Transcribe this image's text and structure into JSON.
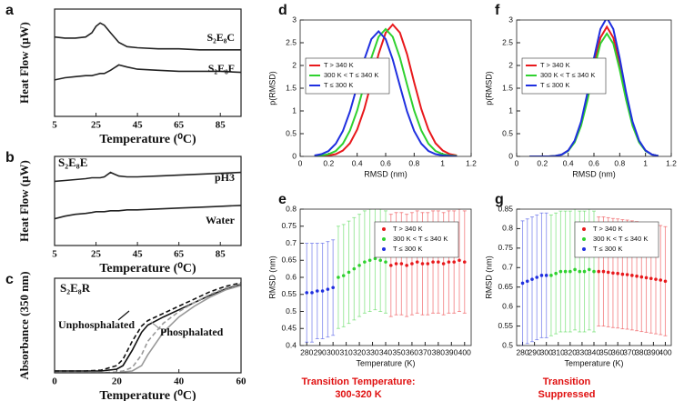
{
  "chart_data": [
    {
      "type": "line",
      "label": "a",
      "xlabel": "Temperature (⁰C)",
      "ylabel": "Heat Flow (μW)",
      "xlim": [
        5,
        95
      ],
      "xticks": [
        5,
        25,
        45,
        65,
        85
      ],
      "ylim": [
        0,
        10
      ],
      "x": [
        5,
        10,
        15,
        20,
        23,
        25,
        27,
        29,
        32,
        36,
        40,
        45,
        55,
        65,
        75,
        85,
        95
      ],
      "series": [
        {
          "name": "S₂E₈C",
          "color": "#222222",
          "style": "solid",
          "values": [
            7.4,
            7.3,
            7.3,
            7.4,
            7.8,
            8.4,
            8.7,
            8.5,
            7.8,
            6.9,
            6.5,
            6.4,
            6.3,
            6.3,
            6.2,
            6.2,
            6.2
          ]
        },
        {
          "name": "S₂E₈F",
          "color": "#222222",
          "style": "solid",
          "values": [
            3.4,
            3.6,
            3.7,
            3.8,
            3.8,
            3.9,
            4.0,
            4.0,
            4.3,
            4.8,
            4.6,
            4.4,
            4.3,
            4.2,
            4.2,
            4.2,
            4.1
          ]
        }
      ]
    },
    {
      "type": "line",
      "label": "b",
      "xlabel": "Temperature (⁰C)",
      "ylabel": "Heat Flow (μW)",
      "annotation": "S₂E₈E",
      "xlim": [
        5,
        95
      ],
      "xticks": [
        5,
        25,
        45,
        65,
        85
      ],
      "ylim": [
        0,
        10
      ],
      "x": [
        5,
        10,
        15,
        20,
        23,
        25,
        27,
        29,
        32,
        36,
        40,
        45,
        55,
        65,
        75,
        85,
        95
      ],
      "series": [
        {
          "name": "pH3",
          "color": "#222222",
          "style": "solid",
          "values": [
            7.2,
            7.3,
            7.4,
            7.5,
            7.6,
            7.6,
            7.6,
            7.7,
            8.2,
            7.8,
            7.7,
            7.7,
            7.8,
            7.9,
            8.0,
            8.1,
            8.2
          ]
        },
        {
          "name": "Water",
          "color": "#222222",
          "style": "solid",
          "values": [
            3.0,
            3.3,
            3.5,
            3.6,
            3.7,
            3.8,
            3.8,
            3.8,
            3.9,
            3.9,
            4.0,
            4.0,
            4.1,
            4.2,
            4.3,
            4.4,
            4.5
          ]
        }
      ]
    },
    {
      "type": "line",
      "label": "c",
      "xlabel": "Temperature (⁰C)",
      "ylabel": "Absorbance (350 nm)",
      "annotation": "S₂E₈R",
      "xlim": [
        0,
        60
      ],
      "xticks": [
        0,
        20,
        40,
        60
      ],
      "ylim": [
        0,
        1.05
      ],
      "x": [
        0,
        10,
        15,
        20,
        22,
        25,
        28,
        30,
        35,
        40,
        45,
        50,
        55,
        60
      ],
      "series": [
        {
          "name": "Unphosphalated",
          "color": "#111111",
          "style": "dashed",
          "values": [
            0.02,
            0.02,
            0.03,
            0.08,
            0.15,
            0.35,
            0.52,
            0.58,
            0.66,
            0.74,
            0.82,
            0.9,
            0.96,
            1.0
          ]
        },
        {
          "color": "#111111",
          "style": "solid",
          "values": [
            0.02,
            0.02,
            0.02,
            0.04,
            0.08,
            0.25,
            0.45,
            0.53,
            0.62,
            0.7,
            0.78,
            0.86,
            0.93,
            0.98
          ]
        },
        {
          "name": "Phosphalated",
          "color": "#999999",
          "style": "dashed",
          "values": [
            0,
            0,
            0,
            0.01,
            0.02,
            0.06,
            0.2,
            0.35,
            0.55,
            0.68,
            0.78,
            0.87,
            0.94,
            0.99
          ]
        },
        {
          "color": "#999999",
          "style": "solid",
          "values": [
            0,
            0,
            0,
            0,
            0.01,
            0.02,
            0.08,
            0.2,
            0.45,
            0.62,
            0.74,
            0.84,
            0.92,
            0.97
          ]
        }
      ]
    },
    {
      "type": "line",
      "label": "d",
      "xlabel": "RMSD (nm)",
      "ylabel": "p(RMSD)",
      "legend": "upper left",
      "xlim": [
        0,
        1.2
      ],
      "xticks": [
        0,
        0.2,
        0.4,
        0.6,
        0.8,
        1,
        1.2
      ],
      "ylim": [
        0,
        3
      ],
      "yticks": [
        0,
        0.5,
        1,
        1.5,
        2,
        2.5,
        3
      ],
      "x": [
        0.1,
        0.15,
        0.2,
        0.25,
        0.3,
        0.35,
        0.4,
        0.45,
        0.5,
        0.55,
        0.6,
        0.65,
        0.7,
        0.75,
        0.8,
        0.85,
        0.9,
        0.95,
        1.0,
        1.05,
        1.1
      ],
      "series": [
        {
          "name": "T > 340 K",
          "color": "#e8191c",
          "style": "solid",
          "values": [
            0,
            0,
            0.02,
            0.05,
            0.13,
            0.29,
            0.59,
            1.04,
            1.63,
            2.25,
            2.72,
            2.9,
            2.72,
            2.25,
            1.63,
            1.04,
            0.59,
            0.29,
            0.13,
            0.05,
            0.02
          ]
        },
        {
          "name": "300 K < T ≤ 340 K",
          "color": "#2fd12f",
          "style": "solid",
          "values": [
            0.01,
            0.02,
            0.05,
            0.12,
            0.28,
            0.57,
            1.01,
            1.58,
            2.17,
            2.63,
            2.8,
            2.63,
            2.17,
            1.58,
            1.01,
            0.57,
            0.28,
            0.12,
            0.05,
            0.02,
            0.01
          ]
        },
        {
          "name": "T ≤ 300 K",
          "color": "#1f2fe0",
          "style": "solid",
          "values": [
            0.02,
            0.05,
            0.12,
            0.28,
            0.56,
            0.99,
            1.55,
            2.13,
            2.58,
            2.75,
            2.58,
            2.13,
            1.55,
            0.99,
            0.56,
            0.28,
            0.12,
            0.05,
            0.02,
            0.01,
            0
          ]
        }
      ]
    },
    {
      "type": "scatter",
      "label": "e",
      "xlabel": "Temperature (K)",
      "ylabel": "RMSD (nm)",
      "legend": "upper right",
      "annotation": [
        "Transition Temperature:",
        "300-320 K"
      ],
      "annotation_color": "#e01010",
      "xlim": [
        275,
        405
      ],
      "xticks": [
        280,
        290,
        300,
        310,
        320,
        330,
        340,
        350,
        360,
        370,
        380,
        390,
        400
      ],
      "ylim": [
        0.4,
        0.8
      ],
      "yticks": [
        0.4,
        0.45,
        0.5,
        0.55,
        0.6,
        0.65,
        0.7,
        0.75,
        0.8
      ],
      "series": [
        {
          "name": "T > 340 K",
          "color": "#e8191c",
          "x": [
            344,
            348,
            352,
            356,
            360,
            364,
            368,
            372,
            376,
            380,
            384,
            388,
            392,
            396,
            400
          ],
          "values": [
            0.635,
            0.64,
            0.64,
            0.635,
            0.64,
            0.645,
            0.64,
            0.64,
            0.645,
            0.645,
            0.64,
            0.645,
            0.645,
            0.65,
            0.645
          ],
          "errors": [
            0.15,
            0.15,
            0.15,
            0.15,
            0.15,
            0.15,
            0.15,
            0.15,
            0.15,
            0.15,
            0.15,
            0.15,
            0.15,
            0.15,
            0.15
          ]
        },
        {
          "name": "300 K < T ≤ 340 K",
          "color": "#2fd12f",
          "x": [
            304,
            308,
            312,
            316,
            320,
            324,
            328,
            332,
            336,
            340
          ],
          "values": [
            0.6,
            0.605,
            0.615,
            0.625,
            0.635,
            0.645,
            0.65,
            0.655,
            0.65,
            0.645
          ],
          "errors": [
            0.15,
            0.15,
            0.15,
            0.15,
            0.15,
            0.15,
            0.15,
            0.15,
            0.15,
            0.15
          ]
        },
        {
          "name": "T ≤ 300 K",
          "color": "#1f2fe0",
          "x": [
            280,
            284,
            288,
            292,
            296,
            300
          ],
          "values": [
            0.555,
            0.555,
            0.56,
            0.56,
            0.565,
            0.57
          ],
          "errors": [
            0.145,
            0.145,
            0.14,
            0.14,
            0.14,
            0.14
          ]
        }
      ]
    },
    {
      "type": "line",
      "label": "f",
      "xlabel": "RMSD (nm)",
      "ylabel": "p(RMSD)",
      "legend": "upper left",
      "xlim": [
        0,
        1.2
      ],
      "xticks": [
        0,
        0.2,
        0.4,
        0.6,
        0.8,
        1,
        1.2
      ],
      "ylim": [
        0,
        3
      ],
      "yticks": [
        0,
        0.5,
        1,
        1.5,
        2,
        2.5,
        3
      ],
      "x": [
        0.1,
        0.15,
        0.2,
        0.25,
        0.3,
        0.35,
        0.4,
        0.45,
        0.5,
        0.55,
        0.6,
        0.65,
        0.7,
        0.75,
        0.8,
        0.85,
        0.9,
        0.95,
        1.0,
        1.05,
        1.1
      ],
      "series": [
        {
          "name": "T > 340 K",
          "color": "#e8191c",
          "style": "solid",
          "values": [
            0,
            0,
            0,
            0,
            0.01,
            0.04,
            0.13,
            0.32,
            0.71,
            1.31,
            2.01,
            2.61,
            2.85,
            2.61,
            2.01,
            1.31,
            0.71,
            0.32,
            0.13,
            0.04,
            0.01
          ]
        },
        {
          "name": "300 K < T ≤ 340 K",
          "color": "#2fd12f",
          "style": "solid",
          "values": [
            0,
            0,
            0,
            0,
            0.01,
            0.04,
            0.12,
            0.31,
            0.67,
            1.24,
            1.91,
            2.48,
            2.7,
            2.48,
            1.91,
            1.24,
            0.67,
            0.31,
            0.12,
            0.04,
            0.01
          ]
        },
        {
          "name": "T ≤ 300 K",
          "color": "#1f2fe0",
          "style": "solid",
          "values": [
            0,
            0,
            0,
            0,
            0.01,
            0.04,
            0.13,
            0.35,
            0.76,
            1.4,
            2.16,
            2.8,
            3.05,
            2.8,
            2.16,
            1.4,
            0.76,
            0.35,
            0.13,
            0.04,
            0.01
          ]
        }
      ]
    },
    {
      "type": "scatter",
      "label": "g",
      "xlabel": "Temperature (K)",
      "ylabel": "RMSD (nm)",
      "legend": "upper right",
      "annotation": [
        "Transition",
        "Suppressed"
      ],
      "annotation_color": "#e01010",
      "xlim": [
        275,
        405
      ],
      "xticks": [
        280,
        290,
        300,
        310,
        320,
        330,
        340,
        350,
        360,
        370,
        380,
        390,
        400
      ],
      "ylim": [
        0.5,
        0.85
      ],
      "yticks": [
        0.5,
        0.55,
        0.6,
        0.65,
        0.7,
        0.75,
        0.8,
        0.85
      ],
      "series": [
        {
          "name": "T > 340 K",
          "color": "#e8191c",
          "x": [
            344,
            348,
            352,
            356,
            360,
            364,
            368,
            372,
            376,
            380,
            384,
            388,
            392,
            396,
            400
          ],
          "values": [
            0.69,
            0.69,
            0.688,
            0.686,
            0.685,
            0.683,
            0.682,
            0.68,
            0.678,
            0.676,
            0.674,
            0.672,
            0.67,
            0.668,
            0.665
          ],
          "errors": [
            0.14,
            0.14,
            0.14,
            0.14,
            0.14,
            0.14,
            0.14,
            0.14,
            0.14,
            0.14,
            0.14,
            0.14,
            0.14,
            0.14,
            0.14
          ]
        },
        {
          "name": "300 K < T ≤ 340 K",
          "color": "#2fd12f",
          "x": [
            304,
            308,
            312,
            316,
            320,
            324,
            328,
            332,
            336,
            340
          ],
          "values": [
            0.68,
            0.685,
            0.69,
            0.69,
            0.69,
            0.695,
            0.69,
            0.69,
            0.695,
            0.69
          ],
          "errors": [
            0.155,
            0.155,
            0.155,
            0.155,
            0.155,
            0.155,
            0.155,
            0.155,
            0.155,
            0.155
          ]
        },
        {
          "name": "T ≤ 300 K",
          "color": "#1f2fe0",
          "x": [
            280,
            284,
            288,
            292,
            296,
            300
          ],
          "values": [
            0.66,
            0.665,
            0.67,
            0.675,
            0.68,
            0.68
          ],
          "errors": [
            0.16,
            0.16,
            0.16,
            0.16,
            0.16,
            0.16
          ]
        }
      ]
    }
  ]
}
